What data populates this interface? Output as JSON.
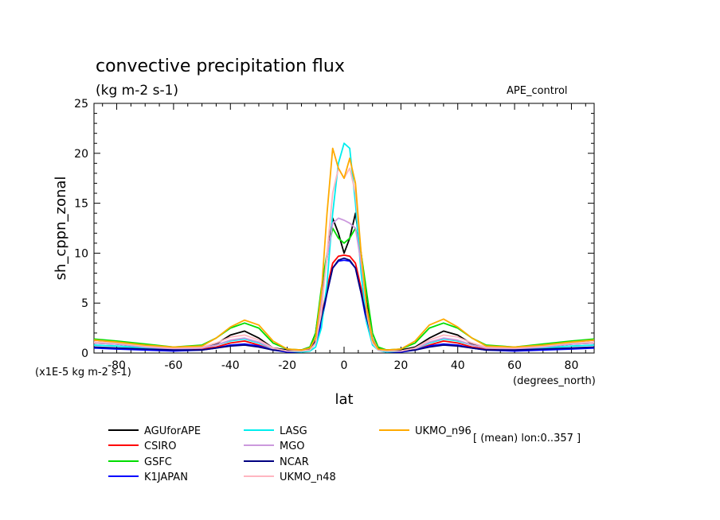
{
  "chart_data": {
    "type": "line",
    "title": "convective precipitation flux",
    "subtitle": "(kg m-2 s-1)",
    "dataset_label": "APE_control",
    "xlabel": "lat",
    "ylabel": "sh_cppn_zonal",
    "x_units": "(degrees_north)",
    "y_scale_note": "(x1E-5 kg m-2 s-1)",
    "footnote": "[ (mean) lon:0..357 ]",
    "xlim": [
      -88,
      88
    ],
    "ylim": [
      0,
      25
    ],
    "x_ticks": [
      -80,
      -60,
      -40,
      -20,
      0,
      20,
      40,
      60,
      80
    ],
    "x_tick_labels": [
      "-80",
      "-60",
      "-40",
      "-20",
      "0",
      "20",
      "40",
      "60",
      "80"
    ],
    "y_ticks": [
      0,
      5,
      10,
      15,
      20,
      25
    ],
    "y_tick_labels": [
      "0",
      "5",
      "10",
      "15",
      "20",
      "25"
    ],
    "grid": false,
    "legend_position": "bottom",
    "x": [
      -88,
      -80,
      -70,
      -60,
      -50,
      -45,
      -40,
      -35,
      -30,
      -25,
      -20,
      -15,
      -12,
      -10,
      -8,
      -6,
      -4,
      -2,
      0,
      2,
      4,
      6,
      8,
      10,
      12,
      15,
      20,
      25,
      30,
      35,
      40,
      45,
      50,
      60,
      70,
      80,
      88
    ],
    "series": [
      {
        "name": "AGUforAPE",
        "color": "#000000",
        "values": [
          1.0,
          0.9,
          0.6,
          0.4,
          0.5,
          0.9,
          1.8,
          2.2,
          1.5,
          0.5,
          0.3,
          0.3,
          0.6,
          2.0,
          6.0,
          9.5,
          13.5,
          12.0,
          10.0,
          11.5,
          14.0,
          10.0,
          5.0,
          1.5,
          0.5,
          0.3,
          0.3,
          0.6,
          1.5,
          2.2,
          1.8,
          0.9,
          0.5,
          0.4,
          0.6,
          0.9,
          1.0
        ]
      },
      {
        "name": "CSIRO",
        "color": "#ff0000",
        "values": [
          1.3,
          1.1,
          0.8,
          0.5,
          0.4,
          0.6,
          1.0,
          1.2,
          0.8,
          0.3,
          0.2,
          0.2,
          0.4,
          1.2,
          3.5,
          6.5,
          9.0,
          9.7,
          9.8,
          9.7,
          9.0,
          6.5,
          3.5,
          1.2,
          0.4,
          0.2,
          0.2,
          0.3,
          0.8,
          1.2,
          1.0,
          0.6,
          0.4,
          0.5,
          0.8,
          1.1,
          1.3
        ]
      },
      {
        "name": "GSFC",
        "color": "#00dd00",
        "values": [
          1.4,
          1.2,
          0.9,
          0.6,
          0.8,
          1.5,
          2.5,
          3.0,
          2.5,
          1.0,
          0.4,
          0.3,
          0.6,
          2.0,
          6.5,
          10.0,
          12.5,
          11.5,
          11.0,
          11.5,
          12.5,
          10.0,
          6.0,
          2.0,
          0.6,
          0.3,
          0.4,
          1.0,
          2.5,
          3.0,
          2.5,
          1.5,
          0.8,
          0.6,
          0.9,
          1.2,
          1.4
        ]
      },
      {
        "name": "K1JAPAN",
        "color": "#0000ff",
        "values": [
          0.5,
          0.4,
          0.3,
          0.2,
          0.3,
          0.5,
          0.8,
          0.9,
          0.7,
          0.3,
          0.1,
          0.1,
          0.3,
          1.0,
          3.0,
          6.0,
          8.5,
          9.2,
          9.3,
          9.2,
          8.5,
          6.0,
          3.0,
          1.0,
          0.3,
          0.1,
          0.1,
          0.3,
          0.7,
          0.9,
          0.8,
          0.5,
          0.3,
          0.2,
          0.3,
          0.4,
          0.5
        ]
      },
      {
        "name": "LASG",
        "color": "#00eeee",
        "values": [
          0.8,
          0.7,
          0.5,
          0.4,
          0.5,
          0.8,
          1.2,
          1.4,
          1.0,
          0.4,
          0.2,
          0.1,
          0.2,
          0.6,
          2.5,
          7.0,
          14.0,
          19.0,
          21.0,
          20.5,
          15.0,
          8.0,
          3.0,
          0.8,
          0.3,
          0.1,
          0.2,
          0.4,
          1.0,
          1.4,
          1.2,
          0.8,
          0.5,
          0.4,
          0.5,
          0.7,
          0.8
        ]
      },
      {
        "name": "MGO",
        "color": "#cc99dd",
        "values": [
          1.0,
          0.9,
          0.6,
          0.4,
          0.5,
          0.8,
          1.3,
          1.5,
          1.1,
          0.4,
          0.2,
          0.2,
          0.4,
          1.5,
          5.0,
          9.5,
          13.0,
          13.5,
          13.3,
          13.0,
          12.5,
          9.0,
          4.5,
          1.5,
          0.4,
          0.2,
          0.2,
          0.4,
          1.1,
          1.5,
          1.3,
          0.8,
          0.5,
          0.4,
          0.6,
          0.9,
          1.0
        ]
      },
      {
        "name": "NCAR",
        "color": "#000080",
        "values": [
          0.6,
          0.5,
          0.4,
          0.3,
          0.3,
          0.5,
          0.7,
          0.8,
          0.6,
          0.3,
          0.2,
          0.2,
          0.4,
          1.2,
          3.5,
          6.0,
          8.5,
          9.3,
          9.5,
          9.3,
          8.5,
          6.0,
          3.5,
          1.2,
          0.4,
          0.2,
          0.2,
          0.3,
          0.6,
          0.8,
          0.7,
          0.5,
          0.3,
          0.3,
          0.4,
          0.5,
          0.6
        ]
      },
      {
        "name": "UKMO_n48",
        "color": "#ffb6c1",
        "values": [
          1.1,
          1.0,
          0.7,
          0.5,
          0.6,
          1.0,
          1.6,
          1.8,
          1.3,
          0.5,
          0.2,
          0.2,
          0.3,
          1.0,
          4.0,
          10.0,
          16.0,
          18.5,
          17.5,
          18.5,
          16.0,
          10.0,
          4.0,
          1.0,
          0.3,
          0.2,
          0.2,
          0.5,
          1.3,
          1.8,
          1.6,
          1.0,
          0.6,
          0.5,
          0.7,
          1.0,
          1.1
        ]
      },
      {
        "name": "UKMO_n96",
        "color": "#ffaa00",
        "values": [
          1.3,
          1.1,
          0.8,
          0.6,
          0.7,
          1.5,
          2.6,
          3.3,
          2.8,
          1.2,
          0.4,
          0.3,
          0.5,
          1.5,
          6.0,
          14.0,
          20.5,
          18.5,
          17.5,
          19.5,
          17.0,
          10.0,
          4.5,
          1.3,
          0.4,
          0.3,
          0.4,
          1.2,
          2.8,
          3.4,
          2.6,
          1.5,
          0.7,
          0.6,
          0.8,
          1.1,
          1.3
        ]
      }
    ]
  }
}
